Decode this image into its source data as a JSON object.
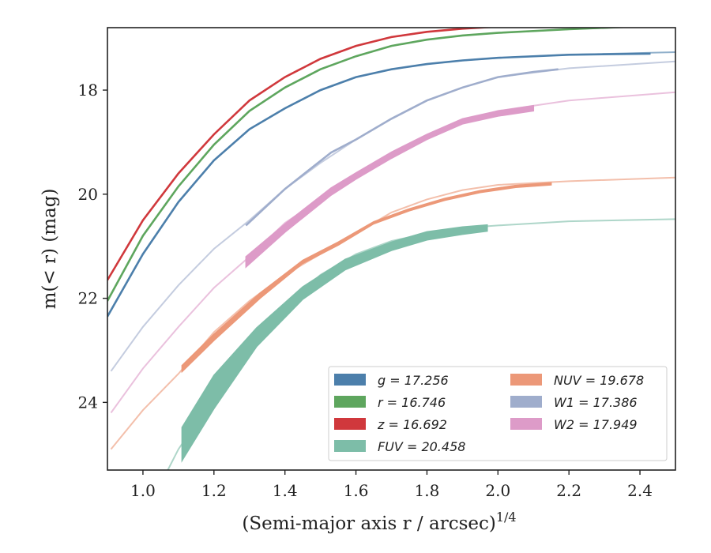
{
  "chart_data": {
    "type": "line",
    "xlabel": "(Semi-major axis r / arcsec)",
    "xlabel_var": "r",
    "xlabel_exponent": "1/4",
    "ylabel": "m(< r) (mag)",
    "xlim": [
      0.9,
      2.5
    ],
    "ylim": [
      25.3,
      16.8
    ],
    "y_inverted": true,
    "xticks": [
      "1.0",
      "1.2",
      "1.4",
      "1.6",
      "1.8",
      "2.0",
      "2.2",
      "2.4"
    ],
    "xtick_values": [
      1.0,
      1.2,
      1.4,
      1.6,
      1.8,
      2.0,
      2.2,
      2.4
    ],
    "yticks": [
      "18",
      "20",
      "22",
      "24"
    ],
    "ytick_values": [
      18,
      20,
      22,
      24
    ],
    "grid": false,
    "legend_position": "lower-right",
    "legend": [
      {
        "label": "g = 17.256",
        "color": "#4c7fab"
      },
      {
        "label": "NUV = 19.678",
        "color": "#ec9878"
      },
      {
        "label": "r = 16.746",
        "color": "#5ea65e"
      },
      {
        "label": "W1 = 17.386",
        "color": "#9fadcc"
      },
      {
        "label": "z = 16.692",
        "color": "#d0383c"
      },
      {
        "label": "W2 = 17.949",
        "color": "#dd9bc8"
      },
      {
        "label": "FUV = 20.458",
        "color": "#7dbda8"
      }
    ],
    "series": [
      {
        "name": "g = 17.256",
        "color": "#4c7fab",
        "model_x": [
          0.9,
          1.0,
          1.1,
          1.2,
          1.3,
          1.4,
          1.5,
          1.6,
          1.7,
          1.8,
          1.9,
          2.0,
          2.2,
          2.5
        ],
        "model_y": [
          22.35,
          21.15,
          20.15,
          19.35,
          18.75,
          18.35,
          18.0,
          17.75,
          17.6,
          17.5,
          17.43,
          17.38,
          17.32,
          17.27
        ],
        "data_x": [
          0.9,
          1.0,
          1.1,
          1.2,
          1.3,
          1.4,
          1.5,
          1.6,
          1.7,
          1.8,
          1.9,
          2.0,
          2.2,
          2.43
        ],
        "data_y": [
          22.35,
          21.15,
          20.15,
          19.35,
          18.75,
          18.35,
          18.0,
          17.75,
          17.6,
          17.5,
          17.43,
          17.38,
          17.32,
          17.3
        ]
      },
      {
        "name": "r = 16.746",
        "color": "#5ea65e",
        "model_x": [
          0.9,
          1.0,
          1.1,
          1.2,
          1.3,
          1.4,
          1.5,
          1.6,
          1.7,
          1.8,
          1.9,
          2.0,
          2.2,
          2.5
        ],
        "model_y": [
          22.05,
          20.8,
          19.85,
          19.05,
          18.4,
          17.95,
          17.6,
          17.35,
          17.15,
          17.03,
          16.95,
          16.9,
          16.83,
          16.75
        ],
        "data_x": [
          0.9,
          1.0,
          1.1,
          1.2,
          1.3,
          1.4,
          1.5,
          1.6,
          1.7,
          1.8,
          1.9,
          2.0,
          2.2,
          2.38
        ],
        "data_y": [
          22.05,
          20.8,
          19.85,
          19.05,
          18.4,
          17.95,
          17.6,
          17.35,
          17.15,
          17.03,
          16.95,
          16.9,
          16.83,
          16.78
        ]
      },
      {
        "name": "z = 16.692",
        "color": "#d0383c",
        "model_x": [
          0.9,
          1.0,
          1.1,
          1.2,
          1.3,
          1.4,
          1.5,
          1.6,
          1.7,
          1.8,
          1.9,
          2.0,
          2.2,
          2.5
        ],
        "model_y": [
          21.65,
          20.5,
          19.6,
          18.85,
          18.2,
          17.75,
          17.4,
          17.15,
          16.98,
          16.88,
          16.82,
          16.78,
          16.74,
          16.7
        ],
        "data_x": [
          0.9,
          1.0,
          1.1,
          1.2,
          1.3,
          1.4,
          1.5,
          1.6,
          1.7,
          1.8,
          1.9,
          2.0,
          2.27
        ],
        "data_y": [
          21.65,
          20.5,
          19.6,
          18.85,
          18.2,
          17.75,
          17.4,
          17.15,
          16.98,
          16.88,
          16.82,
          16.78,
          16.72
        ]
      },
      {
        "name": "FUV = 20.458",
        "color": "#7dbda8",
        "model_x": [
          1.07,
          1.1,
          1.2,
          1.3,
          1.4,
          1.5,
          1.6,
          1.7,
          1.8,
          1.9,
          2.0,
          2.2,
          2.5
        ],
        "model_y": [
          25.3,
          24.9,
          23.9,
          22.95,
          22.15,
          21.55,
          21.15,
          20.9,
          20.75,
          20.65,
          20.6,
          20.52,
          20.48
        ],
        "data_x": [
          1.11,
          1.2,
          1.32,
          1.45,
          1.57,
          1.7,
          1.8,
          1.9,
          1.97
        ],
        "data_y": [
          24.8,
          23.8,
          22.75,
          21.9,
          21.35,
          21.0,
          20.8,
          20.7,
          20.65
        ],
        "data_err": [
          0.32,
          0.32,
          0.18,
          0.12,
          0.1,
          0.08,
          0.08,
          0.07,
          0.06
        ]
      },
      {
        "name": "NUV = 19.678",
        "color": "#ec9878",
        "model_x": [
          0.91,
          1.0,
          1.1,
          1.2,
          1.3,
          1.4,
          1.5,
          1.6,
          1.7,
          1.8,
          1.9,
          2.0,
          2.2,
          2.5
        ],
        "model_y": [
          24.9,
          24.15,
          23.45,
          22.65,
          22.05,
          21.55,
          21.15,
          20.75,
          20.35,
          20.1,
          19.92,
          19.82,
          19.75,
          19.68
        ],
        "data_x": [
          1.11,
          1.2,
          1.33,
          1.45,
          1.55,
          1.65,
          1.75,
          1.85,
          1.95,
          2.05,
          2.15
        ],
        "data_y": [
          23.35,
          22.75,
          21.95,
          21.3,
          20.95,
          20.55,
          20.3,
          20.1,
          19.95,
          19.85,
          19.8
        ],
        "data_err": [
          0.06,
          0.06,
          0.05,
          0.03,
          0.03,
          0.02,
          0.02,
          0.02,
          0.02,
          0.02,
          0.02
        ]
      },
      {
        "name": "W1 = 17.386",
        "color": "#9fadcc",
        "model_x": [
          0.91,
          1.0,
          1.1,
          1.2,
          1.3,
          1.4,
          1.5,
          1.6,
          1.7,
          1.8,
          1.9,
          2.0,
          2.2,
          2.5
        ],
        "model_y": [
          23.4,
          22.55,
          21.75,
          21.05,
          20.5,
          19.9,
          19.4,
          18.95,
          18.55,
          18.2,
          17.95,
          17.75,
          17.58,
          17.45
        ],
        "data_x": [
          1.29,
          1.4,
          1.53,
          1.6,
          1.7,
          1.8,
          1.9,
          2.0,
          2.1,
          2.17
        ],
        "data_y": [
          20.6,
          19.9,
          19.2,
          18.95,
          18.55,
          18.2,
          17.95,
          17.75,
          17.65,
          17.6
        ]
      },
      {
        "name": "W2 = 17.949",
        "color": "#dd9bc8",
        "model_x": [
          0.91,
          1.0,
          1.1,
          1.2,
          1.3,
          1.4,
          1.5,
          1.6,
          1.7,
          1.8,
          1.9,
          2.0,
          2.2,
          2.5
        ],
        "model_y": [
          24.2,
          23.35,
          22.55,
          21.8,
          21.2,
          20.55,
          20.1,
          19.65,
          19.25,
          18.9,
          18.6,
          18.4,
          18.2,
          18.04
        ],
        "data_x": [
          1.29,
          1.4,
          1.53,
          1.6,
          1.7,
          1.8,
          1.9,
          2.0,
          2.1
        ],
        "data_y": [
          21.3,
          20.65,
          19.95,
          19.65,
          19.25,
          18.9,
          18.6,
          18.45,
          18.35
        ],
        "data_err": [
          0.1,
          0.08,
          0.07,
          0.06,
          0.06,
          0.05,
          0.05,
          0.05,
          0.05
        ]
      }
    ]
  }
}
